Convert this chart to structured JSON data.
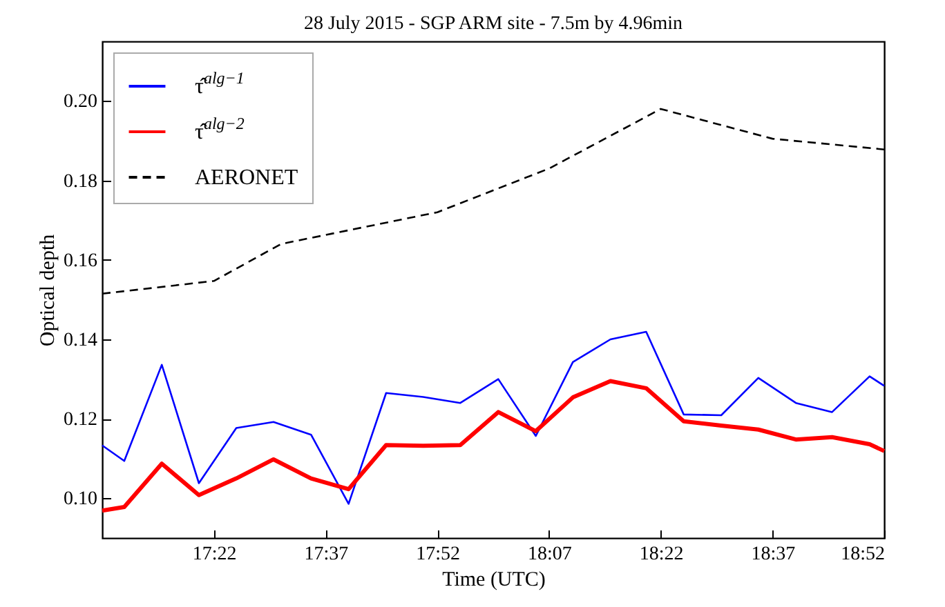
{
  "chart_data": {
    "type": "line",
    "title": "28 July 2015 - SGP ARM site - 7.5m by 4.96min",
    "xlabel": "Time (UTC)",
    "ylabel": "Optical depth",
    "xlim": [
      17.1167,
      18.8667
    ],
    "xticks": [
      {
        "value": 17.3667,
        "label": "17:22"
      },
      {
        "value": 17.6167,
        "label": "17:37"
      },
      {
        "value": 17.8667,
        "label": "17:52"
      },
      {
        "value": 18.1167,
        "label": "18:07"
      },
      {
        "value": 18.3667,
        "label": "18:22"
      },
      {
        "value": 18.6167,
        "label": "18:37"
      },
      {
        "value": 18.8667,
        "label": "18:52"
      }
    ],
    "ylim": [
      0.09,
      0.215
    ],
    "yticks": [
      {
        "value": 0.1,
        "label": "0.10"
      },
      0.12,
      0.14,
      0.16,
      0.18,
      {
        "value": 0.2,
        "label": "0.20"
      }
    ],
    "grid": false,
    "legend": "top left",
    "series": [
      {
        "name": "τ̂$^{alg−1}$",
        "color": "#0000ff",
        "line_style": "solid",
        "x": [
          17.1167,
          17.166,
          17.25,
          17.333,
          17.4167,
          17.5,
          17.584,
          17.668,
          17.752,
          17.835,
          17.918,
          18.003,
          18.087,
          18.17,
          18.254,
          18.334,
          18.418,
          18.502,
          18.585,
          18.669,
          18.75,
          18.834,
          18.8667
        ],
        "values": [
          0.1133,
          0.1094,
          0.1336,
          0.1038,
          0.1177,
          0.1192,
          0.116,
          0.0986,
          0.1265,
          0.1255,
          0.124,
          0.13,
          0.1157,
          0.1343,
          0.14,
          0.1419,
          0.1211,
          0.1209,
          0.1303,
          0.124,
          0.1217,
          0.1307,
          0.1283
        ]
      },
      {
        "name": "τ̂$^{alg−2}$",
        "color": "#ff0000",
        "line_style": "solid",
        "x": [
          17.1167,
          17.166,
          17.25,
          17.333,
          17.4167,
          17.5,
          17.584,
          17.668,
          17.752,
          17.835,
          17.918,
          18.003,
          18.087,
          18.17,
          18.254,
          18.334,
          18.418,
          18.502,
          18.585,
          18.669,
          18.75,
          18.834,
          18.8667
        ],
        "values": [
          0.0969,
          0.0978,
          0.1087,
          0.1008,
          0.105,
          0.1098,
          0.105,
          0.1023,
          0.1134,
          0.1132,
          0.1134,
          0.1217,
          0.1169,
          0.1254,
          0.1295,
          0.1277,
          0.1194,
          0.1183,
          0.1173,
          0.1148,
          0.1154,
          0.1136,
          0.1119
        ]
      },
      {
        "name": "AERONET",
        "color": "#000000",
        "line_style": "dashed",
        "x": [
          17.1167,
          17.3667,
          17.5167,
          17.8667,
          18.1167,
          18.3667,
          18.6167,
          18.8667
        ],
        "values": [
          0.1515,
          0.1547,
          0.164,
          0.172,
          0.183,
          0.198,
          0.1905,
          0.1878
        ]
      }
    ]
  }
}
